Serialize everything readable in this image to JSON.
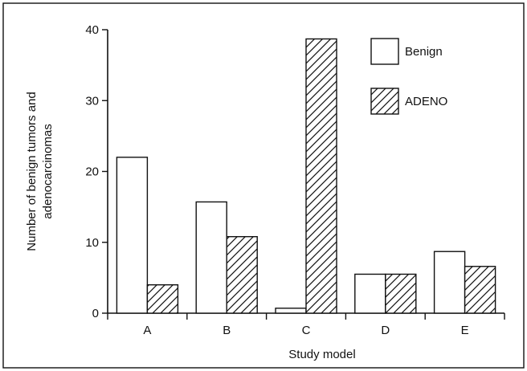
{
  "chart_data": {
    "type": "bar",
    "title": "",
    "xlabel": "Study model",
    "ylabel_lines": [
      "Number of benign tumors and",
      "adenocarcinomas"
    ],
    "categories": [
      "A",
      "B",
      "C",
      "D",
      "E"
    ],
    "series": [
      {
        "name": "Benign",
        "fill": "plain",
        "values": [
          22,
          15.7,
          0.7,
          5.5,
          8.7
        ]
      },
      {
        "name": "ADENO",
        "fill": "hatched",
        "values": [
          4,
          10.8,
          38.7,
          5.5,
          6.6
        ]
      }
    ],
    "ylim": [
      0,
      40
    ],
    "yticks": [
      0,
      10,
      20,
      30,
      40
    ],
    "grid": false,
    "legend_position": "top-right",
    "colors": {
      "line": "#111111",
      "background": "#ffffff"
    }
  }
}
